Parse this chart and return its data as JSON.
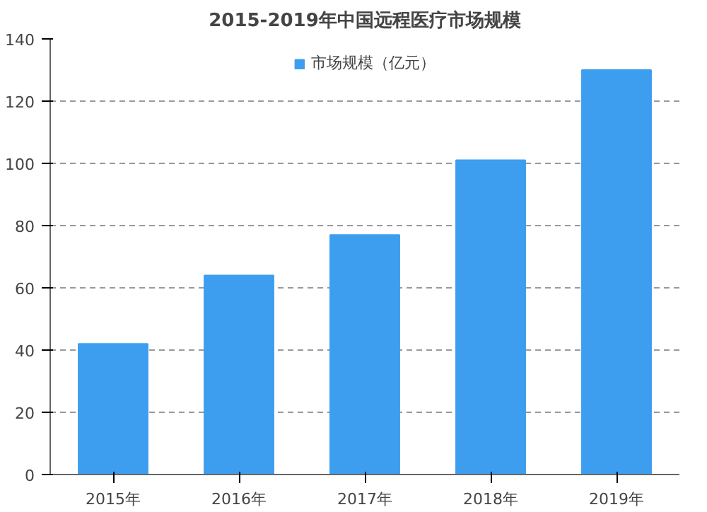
{
  "chart_data": {
    "type": "bar",
    "title": "2015-2019年中国远程医疗市场规模",
    "categories": [
      "2015年",
      "2016年",
      "2017年",
      "2018年",
      "2019年"
    ],
    "series": [
      {
        "name": "市场规模（亿元）",
        "color": "#3d9ef0",
        "values": [
          42,
          64,
          77,
          101,
          130
        ]
      }
    ],
    "ylim": [
      0,
      140
    ],
    "yticks": [
      0,
      20,
      40,
      60,
      80,
      100,
      120,
      140
    ],
    "grid": "y",
    "legend": "top"
  }
}
